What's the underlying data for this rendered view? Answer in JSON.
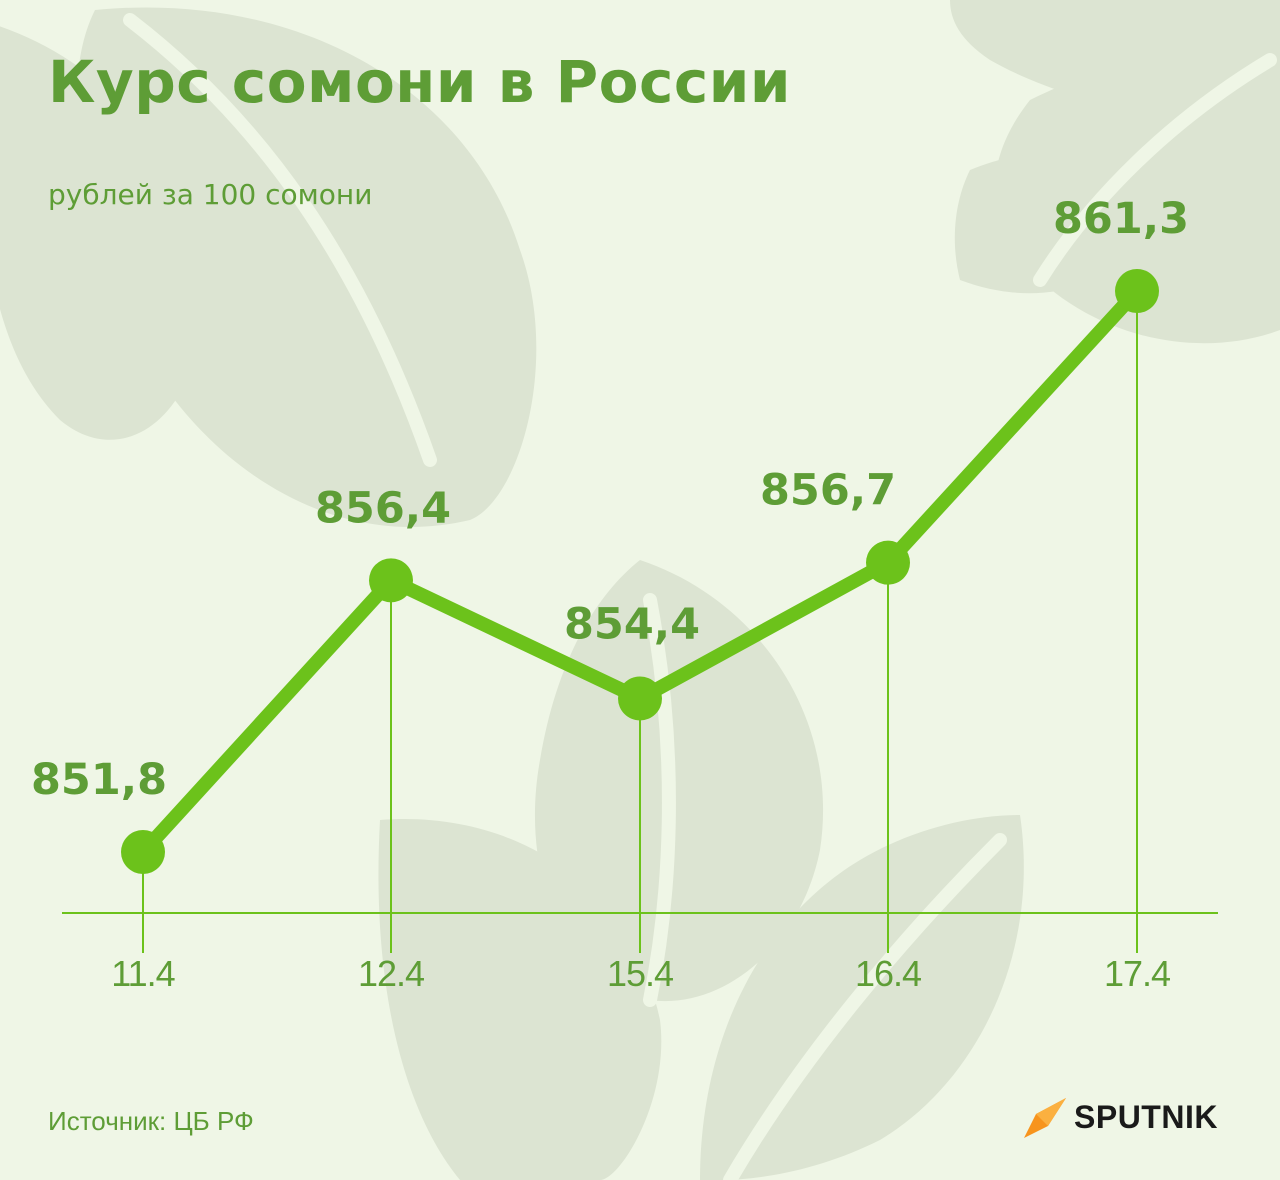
{
  "title": "Курс сомони в России",
  "subtitle": "рублей за 100 сомони",
  "source": "Источник: ЦБ РФ",
  "brand": "SPUTNIK",
  "colors": {
    "background": "#eff6e6",
    "accent": "#6cc21b",
    "text": "#5e9d36",
    "decor": "#dce4d2"
  },
  "chart_data": {
    "type": "line",
    "categories": [
      "11.4",
      "12.4",
      "15.4",
      "16.4",
      "17.4"
    ],
    "values": [
      851.8,
      856.4,
      854.4,
      856.7,
      861.3
    ],
    "value_labels": [
      "851,8",
      "856,4",
      "854,4",
      "856,7",
      "861,3"
    ],
    "title": "Курс сомони в России",
    "subtitle": "рублей за 100 сомони",
    "xlabel": "",
    "ylabel": "",
    "grid": false,
    "legend": "none"
  }
}
